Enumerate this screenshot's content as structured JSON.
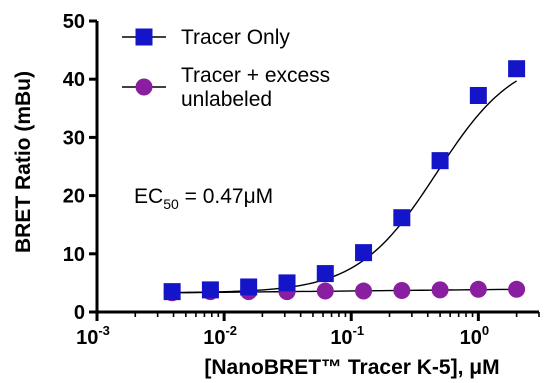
{
  "chart_data": {
    "type": "scatter",
    "xlabel": "[NanoBRET™ Tracer K-5], μM",
    "ylabel": "BRET Ratio (mBu)",
    "x_scale": "log",
    "xlim": [
      0.001,
      3.0
    ],
    "ylim": [
      0,
      50
    ],
    "x_ticks": [
      {
        "value": 0.001,
        "base": "10",
        "exp": "-3"
      },
      {
        "value": 0.01,
        "base": "10",
        "exp": "-2"
      },
      {
        "value": 0.1,
        "base": "10",
        "exp": "-1"
      },
      {
        "value": 1,
        "base": "10",
        "exp": "0"
      }
    ],
    "y_ticks": [
      0,
      10,
      20,
      30,
      40,
      50
    ],
    "legend_position": "top-left",
    "annotation": {
      "prefix": "EC",
      "subscript": "50",
      "suffix": " = 0.47μM"
    },
    "series": [
      {
        "name": "Tracer Only",
        "marker": "square",
        "color": "#1414c8",
        "x": [
          0.0039,
          0.0078,
          0.0156,
          0.03125,
          0.0625,
          0.125,
          0.25,
          0.5,
          1.0,
          2.0
        ],
        "y": [
          3.5,
          3.8,
          4.3,
          5.0,
          6.6,
          10.2,
          16.2,
          26.0,
          37.2,
          41.8
        ],
        "error": [
          0.4,
          0.4,
          0.4,
          0.4,
          0.5,
          0.5,
          0.5,
          1.3,
          0.6,
          0.6
        ],
        "fit": {
          "bottom": 3.3,
          "top": 44.5,
          "ec50": 0.47,
          "hill": 1.4
        }
      },
      {
        "name": "Tracer + excess unlabeled",
        "name_lines": [
          "Tracer + excess",
          "unlabeled"
        ],
        "marker": "circle",
        "color": "#8a1ea0",
        "x": [
          0.0039,
          0.0078,
          0.0156,
          0.03125,
          0.0625,
          0.125,
          0.25,
          0.5,
          1.0,
          2.0
        ],
        "y": [
          3.3,
          3.5,
          3.5,
          3.5,
          3.6,
          3.6,
          3.7,
          3.8,
          3.9,
          3.9
        ],
        "fit": {
          "slope": 0.3
        }
      }
    ]
  }
}
